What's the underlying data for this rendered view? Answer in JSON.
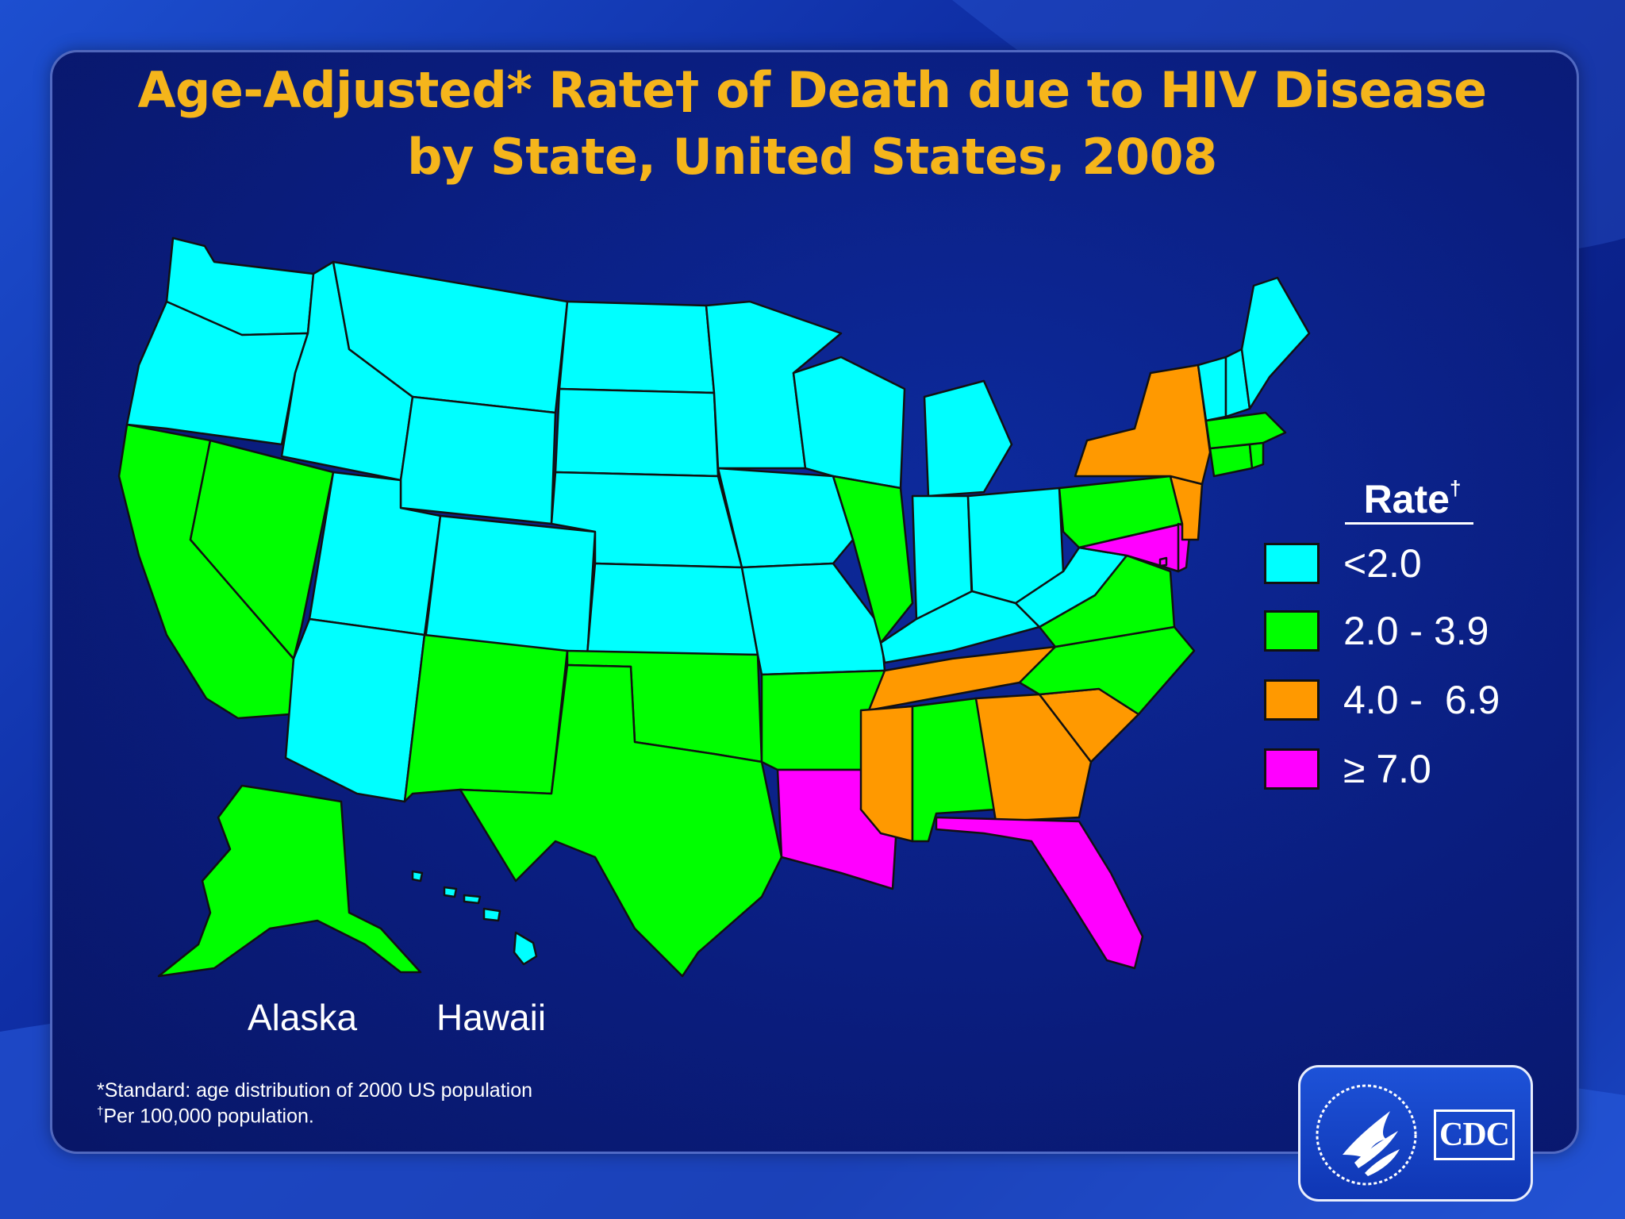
{
  "title": {
    "line1": "Age-Adjusted* Rate† of Death due to HIV Disease",
    "line2": "by State, United States, 2008"
  },
  "legend": {
    "title": "Rate",
    "title_mark": "†",
    "items": [
      {
        "label": "<2.0",
        "color": "#00ffff",
        "category": "lt2"
      },
      {
        "label": "2.0 - 3.9",
        "color": "#00ff00",
        "category": "2to4"
      },
      {
        "label": "4.0 -  6.9",
        "color": "#ff9900",
        "category": "4to7"
      },
      {
        "label": "≥ 7.0",
        "color": "#ff00ff",
        "category": "ge7"
      }
    ]
  },
  "insets": {
    "alaska_label": "Alaska",
    "hawaii_label": "Hawaii"
  },
  "footnotes": {
    "line1": "*Standard: age distribution  of 2000 US population",
    "line2_mark": "†",
    "line2": "Per 100,000 population."
  },
  "logo": {
    "cdc_text": "CDC",
    "hhs_icon": "hhs-eagle-seal-icon"
  },
  "map_data": {
    "states": {
      "WA": "lt2",
      "OR": "lt2",
      "ID": "lt2",
      "MT": "lt2",
      "WY": "lt2",
      "ND": "lt2",
      "SD": "lt2",
      "NE": "lt2",
      "KS": "lt2",
      "MN": "lt2",
      "IA": "lt2",
      "MO": "lt2",
      "WI": "lt2",
      "MI": "lt2",
      "IN": "lt2",
      "OH": "lt2",
      "KY": "lt2",
      "WV": "lt2",
      "UT": "lt2",
      "CO": "lt2",
      "AZ": "lt2",
      "VT": "lt2",
      "NH": "lt2",
      "ME": "lt2",
      "HI": "lt2",
      "CA": "2to4",
      "NV": "2to4",
      "NM": "2to4",
      "TX": "2to4",
      "OK": "2to4",
      "AR": "2to4",
      "IL": "2to4",
      "AL": "2to4",
      "NC": "2to4",
      "VA": "2to4",
      "PA": "2to4",
      "MA": "2to4",
      "CT": "2to4",
      "RI": "2to4",
      "AK": "2to4",
      "NY": "4to7",
      "NJ": "4to7",
      "TN": "4to7",
      "MS": "4to7",
      "GA": "4to7",
      "SC": "4to7",
      "LA": "ge7",
      "FL": "ge7",
      "MD": "ge7",
      "DE": "ge7",
      "DC": "ge7"
    }
  }
}
